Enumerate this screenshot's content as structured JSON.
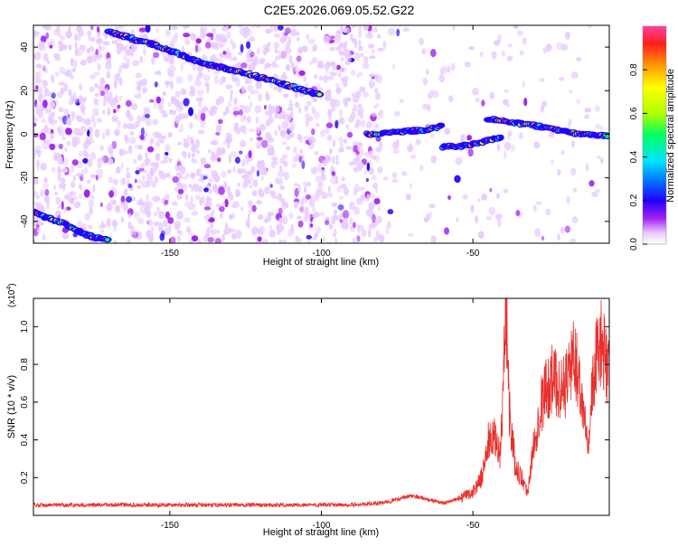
{
  "title": "C2E5.2026.069.05.52.G22",
  "chart_data": [
    {
      "type": "heatmap",
      "xlabel": "Height of straight line (km)",
      "ylabel": "Frequency (Hz)",
      "xlim": [
        -195,
        -5
      ],
      "ylim": [
        -50,
        50
      ],
      "x_ticks": [
        -150,
        -100,
        -50
      ],
      "y_ticks": [
        -40,
        -20,
        0,
        20,
        40
      ],
      "colorbar": {
        "label": "Normalized spectral amplitude",
        "range": [
          0.0,
          1.0
        ],
        "ticks": [
          "0.0",
          "0.2",
          "0.4",
          "0.6",
          "0.8"
        ]
      },
      "tracks": [
        {
          "name": "track-upper-descending",
          "x": [
            -170,
            -155,
            -140,
            -125,
            -110,
            -100
          ],
          "y": [
            47,
            41,
            33,
            28,
            22,
            18
          ]
        },
        {
          "name": "track-lower-left",
          "x": [
            -195,
            -185,
            -178,
            -170
          ],
          "y": [
            -36,
            -41,
            -46,
            -49
          ]
        },
        {
          "name": "track-mid",
          "x": [
            -85,
            -75,
            -65,
            -60
          ],
          "y": [
            0,
            1,
            2,
            4
          ]
        },
        {
          "name": "track-lower-right",
          "x": [
            -60,
            -52,
            -45,
            -40
          ],
          "y": [
            -6,
            -5,
            -3,
            -1
          ]
        },
        {
          "name": "track-right",
          "x": [
            -45,
            -35,
            -25,
            -15,
            -5
          ],
          "y": [
            7,
            5,
            3,
            0,
            -1
          ]
        }
      ]
    },
    {
      "type": "line",
      "xlabel": "Height of straight line (km)",
      "ylabel": "SNR (10 * v/v)",
      "y_multiplier": "(x10",
      "y_multiplier_exp": "4",
      "y_multiplier_close": ")",
      "xlim": [
        -195,
        -5
      ],
      "ylim": [
        0,
        1.15
      ],
      "x_ticks": [
        -150,
        -100,
        -50
      ],
      "y_ticks": [
        "0.2",
        "0.4",
        "0.6",
        "0.8",
        "1.0"
      ],
      "series": [
        {
          "name": "SNR",
          "color": "#e8302c",
          "envelope": [
            [
              -195,
              0.05
            ],
            [
              -180,
              0.05
            ],
            [
              -150,
              0.05
            ],
            [
              -120,
              0.05
            ],
            [
              -100,
              0.05
            ],
            [
              -90,
              0.05
            ],
            [
              -80,
              0.06
            ],
            [
              -70,
              0.1
            ],
            [
              -60,
              0.06
            ],
            [
              -55,
              0.08
            ],
            [
              -50,
              0.12
            ],
            [
              -47,
              0.2
            ],
            [
              -45,
              0.38
            ],
            [
              -43,
              0.4
            ],
            [
              -41,
              0.32
            ],
            [
              -40,
              0.65
            ],
            [
              -39,
              1.1
            ],
            [
              -38,
              0.55
            ],
            [
              -36,
              0.25
            ],
            [
              -34,
              0.2
            ],
            [
              -32,
              0.12
            ],
            [
              -30,
              0.35
            ],
            [
              -28,
              0.55
            ],
            [
              -26,
              0.65
            ],
            [
              -24,
              0.7
            ],
            [
              -22,
              0.68
            ],
            [
              -20,
              0.65
            ],
            [
              -18,
              0.78
            ],
            [
              -16,
              0.8
            ],
            [
              -14,
              0.6
            ],
            [
              -12,
              0.4
            ],
            [
              -10,
              0.75
            ],
            [
              -8,
              0.9
            ],
            [
              -6,
              0.78
            ],
            [
              -5,
              0.8
            ]
          ]
        }
      ]
    }
  ]
}
